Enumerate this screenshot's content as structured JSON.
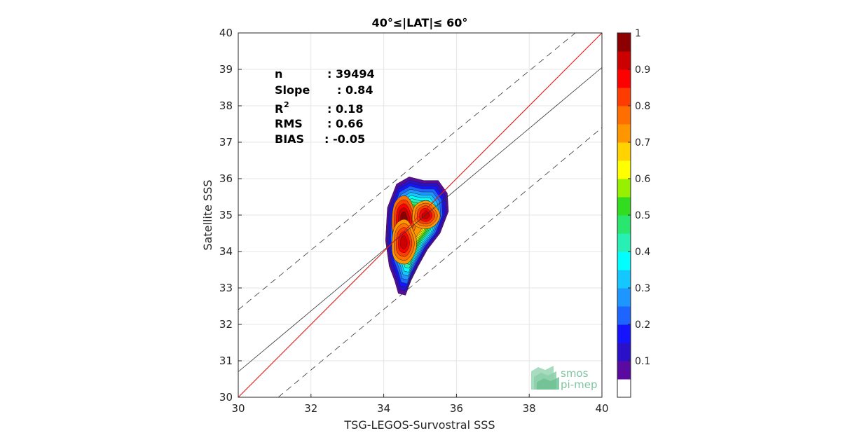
{
  "chart_data": {
    "type": "contour-scatter",
    "title": "40°≤|LAT|≤ 60°",
    "xlabel": "TSG-LEGOS-Survostral SSS",
    "ylabel": "Satellite SSS",
    "xlim": [
      30,
      40
    ],
    "ylim": [
      30,
      40
    ],
    "xticks": [
      "30",
      "32",
      "34",
      "36",
      "38",
      "40"
    ],
    "yticks": [
      "30",
      "31",
      "32",
      "33",
      "34",
      "35",
      "36",
      "37",
      "38",
      "39",
      "40"
    ],
    "grid": true,
    "lines": {
      "identity": {
        "slope": 1,
        "intercept": 0,
        "color": "#e31a1c"
      },
      "regression": {
        "x": [
          30,
          40
        ],
        "y": [
          30.7,
          39.05
        ],
        "color": "#333333"
      },
      "upper_bound": {
        "x": [
          30,
          40
        ],
        "y": [
          32.4,
          40.6
        ],
        "style": "dashed"
      },
      "lower_bound": {
        "x": [
          31.1,
          40
        ],
        "y": [
          30,
          37.4
        ],
        "style": "dashed"
      }
    },
    "stats": [
      {
        "label": "n",
        "sep": ": 39494"
      },
      {
        "label": "Slope",
        "sep": ": 0.84"
      },
      {
        "label": "R",
        "sup": "2",
        "sep": ": 0.18"
      },
      {
        "label": "RMS",
        "sep": ": 0.66"
      },
      {
        "label": "BIAS",
        "sep": ": -0.05"
      }
    ],
    "density_peaks": [
      {
        "x": 34.55,
        "y": 34.9,
        "level": 1.0
      },
      {
        "x": 34.55,
        "y": 34.25,
        "level": 0.95
      },
      {
        "x": 35.15,
        "y": 35.0,
        "level": 0.85
      }
    ],
    "colorbar": {
      "ticks": [
        "0.1",
        "0.2",
        "0.3",
        "0.4",
        "0.5",
        "0.6",
        "0.7",
        "0.8",
        "0.9",
        "1"
      ],
      "range": [
        0,
        1
      ],
      "colors": [
        "#ffffff",
        "#5a0aa0",
        "#2a10c8",
        "#1414ff",
        "#1e64ff",
        "#1e96ff",
        "#14c8ff",
        "#00ffff",
        "#28f0b4",
        "#28e66e",
        "#32dc1e",
        "#96f000",
        "#ffff00",
        "#ffd200",
        "#ff9600",
        "#ff6e00",
        "#ff3c00",
        "#ff0000",
        "#cd0000",
        "#8c0000"
      ]
    }
  },
  "logo": {
    "line1": "smos",
    "line2": "pi-mep"
  }
}
